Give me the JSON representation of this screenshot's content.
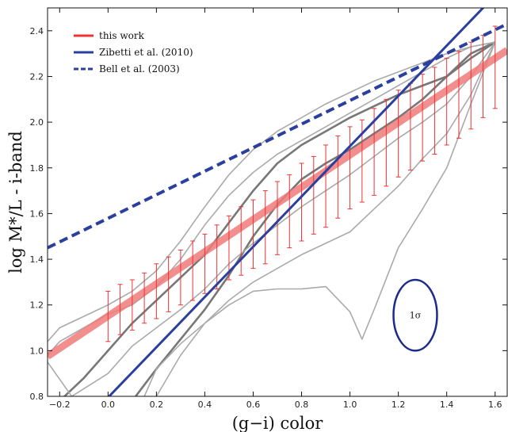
{
  "chart_data": {
    "type": "line",
    "xlabel": "(g−i) color",
    "ylabel": "log M*/L - i-band",
    "xlim": [
      -0.25,
      1.65
    ],
    "ylim": [
      0.8,
      2.5
    ],
    "x_ticks": [
      "−0.2",
      "0.0",
      "0.2",
      "0.4",
      "0.6",
      "0.8",
      "1.0",
      "1.2",
      "1.4",
      "1.6"
    ],
    "x_tick_values": [
      -0.2,
      0.0,
      0.2,
      0.4,
      0.6,
      0.8,
      1.0,
      1.2,
      1.4,
      1.6
    ],
    "y_ticks": [
      "0.8",
      "1.0",
      "1.2",
      "1.4",
      "1.6",
      "1.8",
      "2.0",
      "2.2",
      "2.4"
    ],
    "y_tick_values": [
      0.8,
      1.0,
      1.2,
      1.4,
      1.6,
      1.8,
      2.0,
      2.2,
      2.4
    ],
    "grid": false,
    "legend_position": "top-left",
    "legend": [
      {
        "name": "this work",
        "color": "#ee3333",
        "style": "solid"
      },
      {
        "name": "Zibetti et al. (2010)",
        "color": "#2b3f9e",
        "style": "solid"
      },
      {
        "name": "Bell et al. (2003)",
        "color": "#2b3f9e",
        "style": "dashed"
      }
    ],
    "series": [
      {
        "name": "this work",
        "color": "#f07a7a",
        "x": [
          -0.25,
          1.65
        ],
        "y": [
          0.975,
          2.315
        ]
      },
      {
        "name": "Zibetti et al. (2010)",
        "color": "#2b3f9e",
        "x": [
          -0.05,
          1.65
        ],
        "y": [
          0.74,
          2.61
        ]
      },
      {
        "name": "Bell et al. (2003)",
        "color": "#2b3f9e",
        "x": [
          -0.25,
          1.65
        ],
        "y": [
          1.45,
          2.43
        ]
      }
    ],
    "errorbars": {
      "color": "#ee3333",
      "x": [
        0.0,
        0.05,
        0.1,
        0.15,
        0.2,
        0.25,
        0.3,
        0.35,
        0.4,
        0.45,
        0.5,
        0.55,
        0.6,
        0.65,
        0.7,
        0.75,
        0.8,
        0.85,
        0.9,
        0.95,
        1.0,
        1.05,
        1.1,
        1.15,
        1.2,
        1.25,
        1.3,
        1.35,
        1.4,
        1.45,
        1.5,
        1.55,
        1.6
      ],
      "y": [
        1.15,
        1.18,
        1.2,
        1.23,
        1.26,
        1.29,
        1.32,
        1.35,
        1.38,
        1.41,
        1.45,
        1.48,
        1.51,
        1.54,
        1.58,
        1.61,
        1.65,
        1.68,
        1.72,
        1.76,
        1.8,
        1.83,
        1.87,
        1.91,
        1.95,
        1.98,
        2.02,
        2.05,
        2.09,
        2.12,
        2.16,
        2.2,
        2.24
      ],
      "err": [
        0.11,
        0.11,
        0.11,
        0.11,
        0.12,
        0.12,
        0.12,
        0.13,
        0.13,
        0.14,
        0.14,
        0.15,
        0.15,
        0.16,
        0.16,
        0.16,
        0.17,
        0.17,
        0.18,
        0.18,
        0.18,
        0.18,
        0.19,
        0.19,
        0.19,
        0.19,
        0.19,
        0.19,
        0.19,
        0.19,
        0.19,
        0.18,
        0.18
      ]
    },
    "gray_tracks": [
      {
        "style": "thick",
        "color": "#777777",
        "x": [
          -0.2,
          -0.1,
          0.0,
          0.1,
          0.2,
          0.3,
          0.4,
          0.5,
          0.6,
          0.7,
          0.8,
          0.9,
          1.0,
          1.1,
          1.2,
          1.3,
          1.4,
          1.5,
          1.6
        ],
        "y": [
          0.78,
          0.88,
          1.0,
          1.12,
          1.22,
          1.32,
          1.42,
          1.56,
          1.7,
          1.82,
          1.9,
          1.96,
          2.02,
          2.07,
          2.12,
          2.16,
          2.2,
          2.28,
          2.35
        ]
      },
      {
        "style": "thick",
        "color": "#777777",
        "x": [
          0.1,
          0.2,
          0.3,
          0.4,
          0.5,
          0.6,
          0.7,
          0.8,
          0.9,
          1.0,
          1.1,
          1.2,
          1.3,
          1.4,
          1.5,
          1.6
        ],
        "y": [
          0.78,
          0.92,
          1.05,
          1.18,
          1.33,
          1.5,
          1.64,
          1.75,
          1.82,
          1.88,
          1.95,
          2.02,
          2.1,
          2.2,
          2.3,
          2.35
        ]
      },
      {
        "style": "thin",
        "color": "#aaaaaa",
        "x": [
          -0.25,
          -0.2,
          -0.1,
          0.0,
          0.1,
          0.2,
          0.3,
          0.4,
          0.5,
          0.6,
          0.7,
          0.8,
          0.9,
          1.0,
          1.1,
          1.2,
          1.3,
          1.4,
          1.5,
          1.6
        ],
        "y": [
          1.04,
          1.1,
          1.15,
          1.2,
          1.26,
          1.35,
          1.48,
          1.63,
          1.77,
          1.88,
          1.96,
          2.02,
          2.08,
          2.13,
          2.18,
          2.22,
          2.26,
          2.3,
          2.33,
          2.35
        ]
      },
      {
        "style": "thin",
        "color": "#aaaaaa",
        "x": [
          -0.25,
          -0.2,
          -0.1,
          0.0,
          0.1,
          0.2,
          0.3,
          0.4,
          0.5,
          0.6,
          0.7,
          0.8,
          0.9,
          1.0,
          1.1,
          1.2,
          1.3,
          1.4,
          1.5,
          1.6
        ],
        "y": [
          0.98,
          1.04,
          1.1,
          1.16,
          1.2,
          1.28,
          1.4,
          1.55,
          1.68,
          1.78,
          1.86,
          1.92,
          1.98,
          2.04,
          2.1,
          2.16,
          2.22,
          2.28,
          2.33,
          2.35
        ]
      },
      {
        "style": "thin",
        "color": "#aaaaaa",
        "x": [
          -0.25,
          -0.15,
          0.0,
          0.1,
          0.2,
          0.3,
          0.4,
          0.5,
          0.6,
          0.7,
          0.8,
          0.9,
          1.0,
          1.1,
          1.2,
          1.3,
          1.4,
          1.5,
          1.6
        ],
        "y": [
          0.95,
          0.8,
          0.9,
          1.02,
          1.1,
          1.18,
          1.27,
          1.38,
          1.47,
          1.55,
          1.63,
          1.7,
          1.77,
          1.85,
          1.93,
          2.0,
          2.08,
          2.2,
          2.35
        ]
      },
      {
        "style": "thin",
        "color": "#aaaaaa",
        "x": [
          0.15,
          0.2,
          0.3,
          0.4,
          0.5,
          0.6,
          0.7,
          0.8,
          0.9,
          1.0,
          1.1,
          1.2,
          1.3,
          1.4,
          1.5,
          1.6
        ],
        "y": [
          0.8,
          0.92,
          1.03,
          1.12,
          1.22,
          1.3,
          1.36,
          1.42,
          1.47,
          1.52,
          1.62,
          1.72,
          1.84,
          1.95,
          2.12,
          2.35
        ]
      },
      {
        "style": "thin",
        "color": "#aaaaaa",
        "x": [
          0.2,
          0.3,
          0.4,
          0.5,
          0.6,
          0.7,
          0.8,
          0.9,
          1.0,
          1.05,
          1.1,
          1.2,
          1.3,
          1.4,
          1.5,
          1.6
        ],
        "y": [
          0.8,
          0.98,
          1.12,
          1.2,
          1.26,
          1.27,
          1.27,
          1.28,
          1.17,
          1.05,
          1.18,
          1.45,
          1.62,
          1.8,
          2.08,
          2.35
        ]
      }
    ],
    "annotation": {
      "text": "1σ",
      "color": "#1c2a8a",
      "x": 1.27,
      "y": 1.155,
      "rx": 0.09,
      "ry": 0.155
    }
  }
}
